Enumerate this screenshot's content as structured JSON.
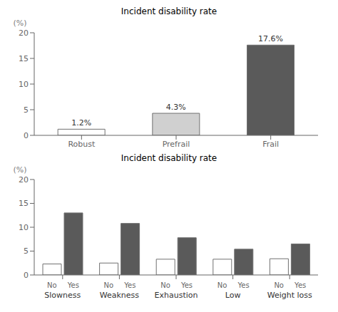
{
  "chart_data": [
    {
      "type": "bar",
      "title": "Incident disability rate",
      "ylabel": "(%)",
      "categories": [
        "Robust",
        "Prefrail",
        "Frail"
      ],
      "values": [
        1.2,
        4.3,
        17.6
      ],
      "value_labels": [
        "1.2%",
        "4.3%",
        "17.6%"
      ],
      "colors": [
        "#ffffff",
        "#d0d0d0",
        "#5a5a5a"
      ],
      "ylim": [
        0,
        20
      ],
      "yticks": [
        0,
        5,
        10,
        15,
        20
      ],
      "data_labels": true
    },
    {
      "type": "bar",
      "title": "Incident disability rate",
      "ylabel": "(%)",
      "categories": [
        "Slowness",
        "Weakness",
        "Exhaustion",
        "Low",
        "Weight loss"
      ],
      "series": [
        {
          "name": "No",
          "color": "#ffffff",
          "values": [
            2.3,
            2.5,
            3.3,
            3.3,
            3.4
          ]
        },
        {
          "name": "Yes",
          "color": "#5a5a5a",
          "values": [
            13.0,
            10.8,
            7.8,
            5.4,
            6.5
          ]
        }
      ],
      "ylim": [
        0,
        20
      ],
      "yticks": [
        0,
        5,
        10,
        15,
        20
      ]
    }
  ]
}
